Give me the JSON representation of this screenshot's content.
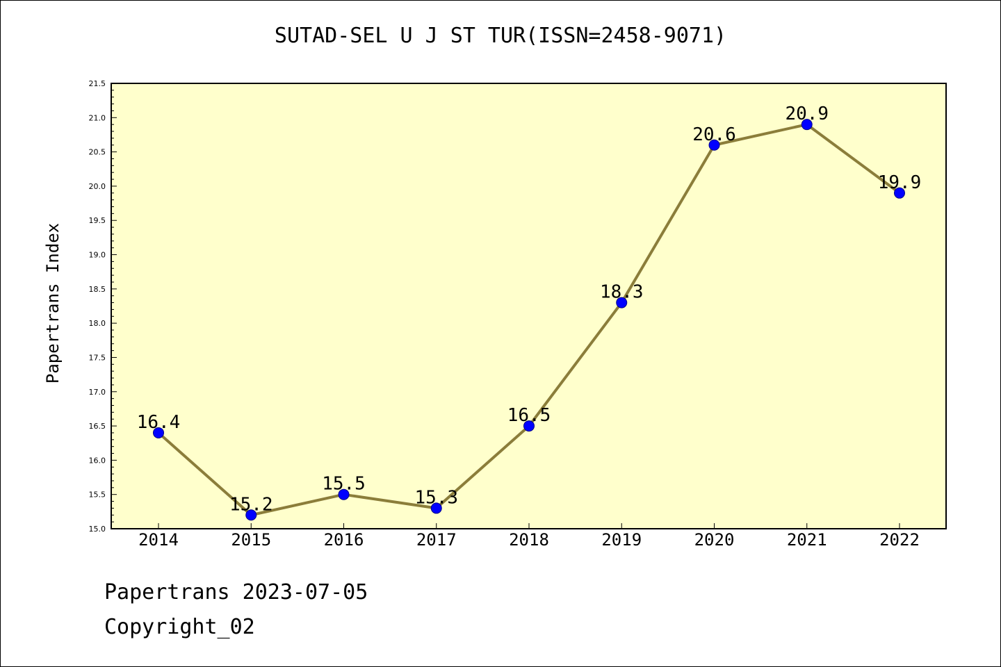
{
  "colors": {
    "plot_background": "#ffffcc",
    "line": "#8b7d3a",
    "marker": "#0000ff",
    "axis": "#000000"
  },
  "footer": {
    "line1": "Papertrans 2023-07-05",
    "line2": "Copyright_02"
  },
  "chart_data": {
    "type": "line",
    "title": "SUTAD-SEL U J ST TUR(ISSN=2458-9071)",
    "xlabel": "",
    "ylabel": "Papertrans Index",
    "categories": [
      "2014",
      "2015",
      "2016",
      "2017",
      "2018",
      "2019",
      "2020",
      "2021",
      "2022"
    ],
    "series": [
      {
        "values": [
          16.4,
          15.2,
          15.5,
          15.3,
          16.5,
          18.3,
          20.6,
          20.9,
          19.9
        ]
      }
    ],
    "data_labels": [
      "16.4",
      "15.2",
      "15.5",
      "15.3",
      "16.5",
      "18.3",
      "20.6",
      "20.9",
      "19.9"
    ],
    "ylim": [
      15.0,
      21.5
    ],
    "y_major_step": 0.5,
    "y_minor_step": 0.1,
    "y_tick_labels": [
      "15.0",
      "15.5",
      "16.0",
      "16.5",
      "17.0",
      "17.5",
      "18.0",
      "18.5",
      "19.0",
      "19.5",
      "20.0",
      "20.5",
      "21.0",
      "21.5"
    ],
    "grid": false,
    "legend": "none"
  }
}
